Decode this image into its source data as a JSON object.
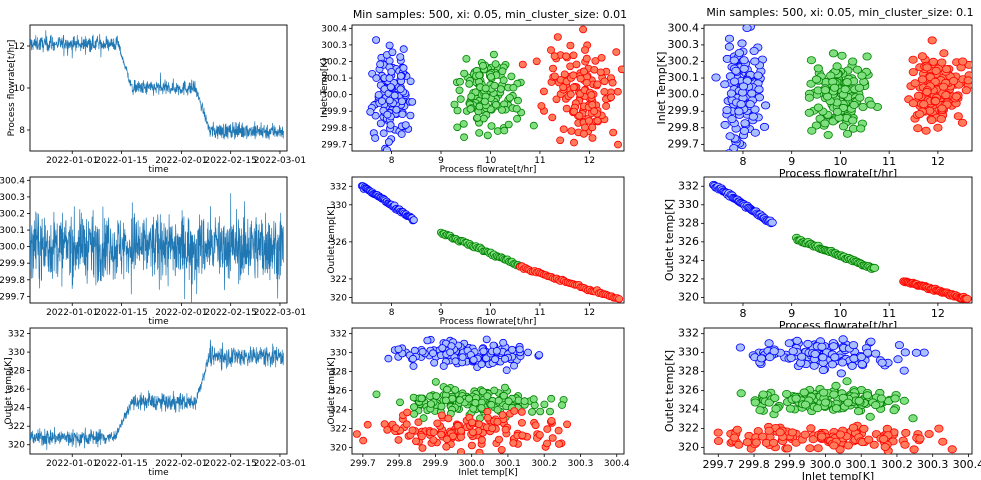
{
  "figure": {
    "title_middle": "Min samples: 500, xi: 0.05, min_cluster_size: 0.01",
    "title_right": "Min samples: 500, xi: 0.05, min_cluster_size: 0.1"
  },
  "colors": {
    "line": "#1f77b4",
    "cluster_1_fill": "#aabfff",
    "cluster_1_edge": "#0000ff",
    "cluster_2_fill": "#80e080",
    "cluster_2_edge": "#008000",
    "cluster_3_fill": "#ff7b5a",
    "cluster_3_edge": "#ff0000"
  },
  "chart_data": [
    {
      "id": "ts-flow",
      "type": "line",
      "title": "",
      "xlabel": "time",
      "ylabel": "Process flowrate[t/hr]",
      "xticks": [
        "2022-01-01",
        "2022-01-15",
        "2022-02-01",
        "2022-02-15",
        "2022-03-01"
      ],
      "yticks": [
        "8",
        "10",
        "12"
      ],
      "ylim": [
        7.0,
        13.0
      ],
      "series": [
        {
          "name": "Process flowrate",
          "segments": [
            {
              "from": "2021-12-20",
              "to": "2022-01-14",
              "level": 12.1,
              "noise": 0.18
            },
            {
              "from": "2022-01-14",
              "to": "2022-01-18",
              "ramp_to": 10.0
            },
            {
              "from": "2022-01-18",
              "to": "2022-02-05",
              "level": 10.0,
              "noise": 0.18
            },
            {
              "from": "2022-02-05",
              "to": "2022-02-09",
              "ramp_to": 8.0
            },
            {
              "from": "2022-02-09",
              "to": "2022-03-02",
              "level": 7.95,
              "noise": 0.2
            }
          ]
        }
      ]
    },
    {
      "id": "ts-inlet",
      "type": "line",
      "title": "",
      "xlabel": "time",
      "ylabel": "",
      "xticks": [
        "2022-01-01",
        "2022-01-15",
        "2022-02-01",
        "2022-02-15",
        "2022-03-01"
      ],
      "yticks": [
        "299.7",
        "299.8",
        "299.9",
        "300.0",
        "300.1",
        "300.2",
        "300.3",
        "300.4"
      ],
      "ylim": [
        299.66,
        300.42
      ],
      "series": [
        {
          "name": "Inlet temp",
          "segments": [
            {
              "from": "2021-12-20",
              "to": "2022-03-02",
              "level": 300.0,
              "noise": 0.1
            }
          ]
        }
      ]
    },
    {
      "id": "ts-outlet",
      "type": "line",
      "title": "",
      "xlabel": "time",
      "ylabel": "Outlet temp[K]",
      "xticks": [
        "2022-01-01",
        "2022-01-15",
        "2022-02-01",
        "2022-02-15",
        "2022-03-01"
      ],
      "yticks": [
        "320",
        "322",
        "324",
        "326",
        "328",
        "330",
        "332"
      ],
      "ylim": [
        319.0,
        332.6
      ],
      "series": [
        {
          "name": "Outlet temp",
          "segments": [
            {
              "from": "2021-12-20",
              "to": "2022-01-13",
              "level": 320.8,
              "noise": 0.45
            },
            {
              "from": "2022-01-13",
              "to": "2022-01-18",
              "ramp_to": 324.6
            },
            {
              "from": "2022-01-18",
              "to": "2022-02-05",
              "level": 324.6,
              "noise": 0.45
            },
            {
              "from": "2022-02-05",
              "to": "2022-02-09",
              "ramp_to": 329.6
            },
            {
              "from": "2022-02-09",
              "to": "2022-03-02",
              "level": 329.6,
              "noise": 0.55
            }
          ]
        }
      ]
    },
    {
      "id": "m-flow-inlet",
      "type": "scatter",
      "title": "",
      "xlabel": "Process flowrate[t/hr]",
      "ylabel": "Inlet Temp[K]",
      "xticks": [
        "8",
        "9",
        "10",
        "11",
        "12"
      ],
      "yticks": [
        "299.7",
        "299.8",
        "299.9",
        "300.0",
        "300.1",
        "300.2",
        "300.3",
        "300.4"
      ],
      "xlim": [
        7.2,
        12.7
      ],
      "ylim": [
        299.66,
        300.42
      ],
      "series": [
        {
          "name": "cluster 1",
          "x": [
            7.6,
            8.4
          ],
          "y": [
            299.72,
            300.3
          ]
        },
        {
          "name": "cluster 2",
          "x": [
            9.4,
            10.6
          ],
          "y": [
            299.78,
            300.22
          ]
        },
        {
          "name": "cluster 3",
          "x": [
            11.0,
            12.6
          ],
          "y": [
            299.7,
            300.3
          ]
        }
      ]
    },
    {
      "id": "m-flow-outlet",
      "type": "scatter",
      "title": "",
      "xlabel": "Process flowrate[t/hr]",
      "ylabel": "Outlet temp[K]",
      "xticks": [
        "8",
        "9",
        "10",
        "11",
        "12"
      ],
      "yticks": [
        "320",
        "322",
        "326",
        "330",
        "332"
      ],
      "xlim": [
        7.2,
        12.7
      ],
      "ylim": [
        319.4,
        333.0
      ],
      "series": [
        {
          "name": "cluster 1",
          "x": [
            7.4,
            8.45
          ],
          "y": [
            332.1,
            328.4
          ]
        },
        {
          "name": "cluster 2",
          "x": [
            9.0,
            10.65
          ],
          "y": [
            327.0,
            323.3
          ]
        },
        {
          "name": "cluster 3",
          "x": [
            10.6,
            12.6
          ],
          "y": [
            323.3,
            319.8
          ]
        }
      ]
    },
    {
      "id": "m-inlet-outlet",
      "type": "scatter",
      "title": "",
      "xlabel": "Inlet temp[K]",
      "ylabel": "Outlet temp[K]",
      "xticks": [
        "299.7",
        "299.8",
        "299.9",
        "300.0",
        "300.1",
        "300.2",
        "300.3",
        "300.4"
      ],
      "yticks": [
        "320",
        "322",
        "324",
        "326",
        "328",
        "330",
        "332"
      ],
      "xlim": [
        299.67,
        300.42
      ],
      "ylim": [
        319.3,
        332.6
      ],
      "series": [
        {
          "name": "cluster 1",
          "x": [
            299.8,
            300.2
          ],
          "y": [
            328.5,
            331.2
          ]
        },
        {
          "name": "cluster 2",
          "x": [
            299.8,
            300.2
          ],
          "y": [
            323.4,
            326.3
          ]
        },
        {
          "name": "cluster 3",
          "x": [
            299.72,
            300.3
          ],
          "y": [
            319.8,
            323.6
          ]
        }
      ]
    },
    {
      "id": "r-flow-inlet",
      "type": "scatter",
      "title": "",
      "xlabel": "Process flowrate[t/hr]",
      "ylabel": "Inlet Temp[K]",
      "xticks": [
        "8",
        "9",
        "10",
        "11",
        "12"
      ],
      "yticks": [
        "299.7",
        "299.8",
        "299.9",
        "300.0",
        "300.1",
        "300.2",
        "300.3",
        "300.4"
      ],
      "xlim": [
        7.2,
        12.7
      ],
      "ylim": [
        299.66,
        300.42
      ],
      "series": [
        {
          "name": "cluster 1",
          "x": [
            7.6,
            8.4
          ],
          "y": [
            299.72,
            300.3
          ]
        },
        {
          "name": "cluster 2",
          "x": [
            9.4,
            10.6
          ],
          "y": [
            299.78,
            300.22
          ]
        },
        {
          "name": "cluster 3",
          "x": [
            11.4,
            12.6
          ],
          "y": [
            299.8,
            300.25
          ]
        }
      ]
    },
    {
      "id": "r-flow-outlet",
      "type": "scatter",
      "title": "",
      "xlabel": "Process flowrate[t/hr]",
      "ylabel": "Outlet temp[K]",
      "xticks": [
        "8",
        "9",
        "10",
        "11",
        "12"
      ],
      "yticks": [
        "320",
        "322",
        "324",
        "326",
        "328",
        "330",
        "332"
      ],
      "xlim": [
        7.2,
        12.7
      ],
      "ylim": [
        319.4,
        333.0
      ],
      "series": [
        {
          "name": "cluster 1",
          "x": [
            7.4,
            8.6
          ],
          "y": [
            332.2,
            328.0
          ]
        },
        {
          "name": "cluster 2",
          "x": [
            9.1,
            10.7
          ],
          "y": [
            326.3,
            323.1
          ]
        },
        {
          "name": "cluster 3",
          "x": [
            11.3,
            12.6
          ],
          "y": [
            321.8,
            319.8
          ]
        }
      ]
    },
    {
      "id": "r-inlet-outlet",
      "type": "scatter",
      "title": "",
      "xlabel": "Inlet temp[K]",
      "ylabel": "Outlet temp[K]",
      "xticks": [
        "299.7",
        "299.8",
        "299.9",
        "300.0",
        "300.1",
        "300.2",
        "300.3",
        "300.4"
      ],
      "yticks": [
        "320",
        "322",
        "324",
        "326",
        "328",
        "330",
        "332"
      ],
      "xlim": [
        299.66,
        300.41
      ],
      "ylim": [
        319.3,
        332.6
      ],
      "series": [
        {
          "name": "cluster 1",
          "x": [
            299.8,
            300.2
          ],
          "y": [
            328.5,
            331.2
          ]
        },
        {
          "name": "cluster 2",
          "x": [
            299.8,
            300.2
          ],
          "y": [
            323.5,
            326.3
          ]
        },
        {
          "name": "cluster 3",
          "x": [
            299.7,
            300.3
          ],
          "y": [
            319.8,
            322.3
          ]
        }
      ]
    }
  ]
}
